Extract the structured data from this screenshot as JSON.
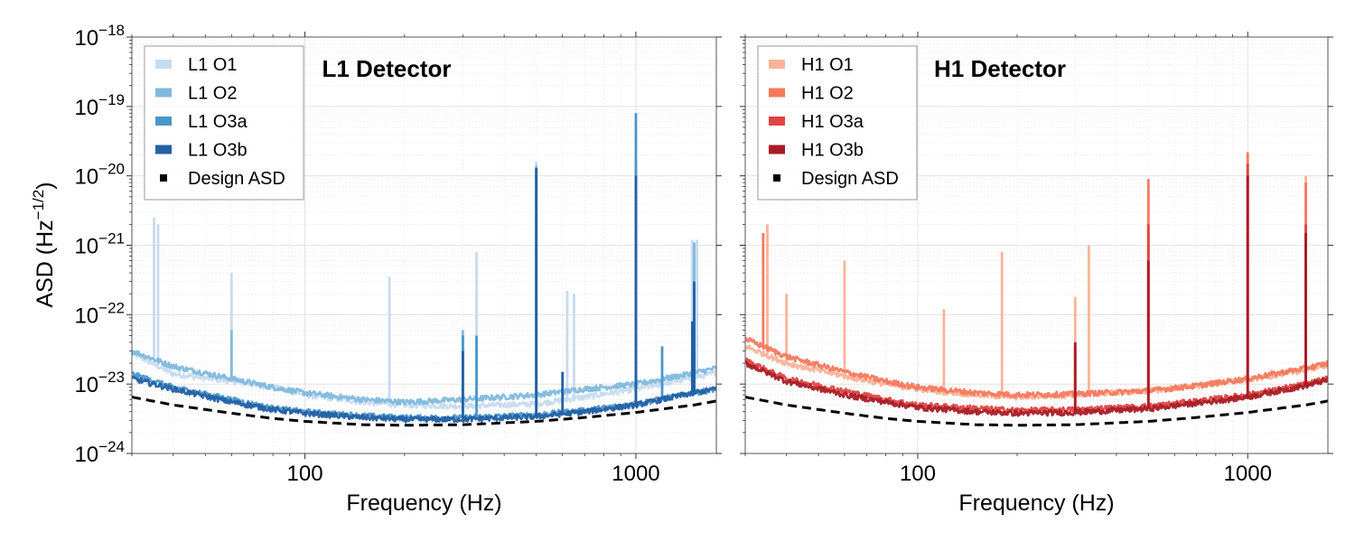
{
  "shared": {
    "ylabel": "ASD (Hz",
    "ylabel_sup": "−1/2",
    "ylabel_close": ")",
    "xlabel": "Frequency (Hz)",
    "xlim": [
      30,
      1750
    ],
    "ylim": [
      1e-24,
      1e-18
    ],
    "x_ticks": [
      {
        "value": 100,
        "label": "100"
      },
      {
        "value": 1000,
        "label": "1000"
      }
    ],
    "y_ticks": [
      {
        "exp": -24,
        "label": "−24"
      },
      {
        "exp": -23,
        "label": "−23"
      },
      {
        "exp": -22,
        "label": "−22"
      },
      {
        "exp": -21,
        "label": "−21"
      },
      {
        "exp": -20,
        "label": "−20"
      },
      {
        "exp": -19,
        "label": "−19"
      },
      {
        "exp": -18,
        "label": "−18"
      }
    ],
    "y_tick_base": "10",
    "grid": true
  },
  "chart_data": [
    {
      "type": "line",
      "title": "L1 Detector",
      "xscale": "log",
      "yscale": "log",
      "legend_position": "top-left",
      "series": [
        {
          "name": "L1 O1",
          "color": "#c6dbef",
          "points": [
            [
              30,
              2.8e-23
            ],
            [
              40,
              1.4e-23
            ],
            [
              60,
              1.1e-23
            ],
            [
              80,
              9e-24
            ],
            [
              100,
              7e-24
            ],
            [
              150,
              5.5e-24
            ],
            [
              200,
              5e-24
            ],
            [
              300,
              4.8e-24
            ],
            [
              500,
              5.2e-24
            ],
            [
              700,
              6.5e-24
            ],
            [
              1000,
              8.5e-24
            ],
            [
              1500,
              1.25e-23
            ],
            [
              1750,
              1.45e-23
            ]
          ],
          "lines": [
            [
              35,
              2.5e-21
            ],
            [
              36,
              2e-21
            ],
            [
              60,
              4e-22
            ],
            [
              180,
              3.5e-22
            ],
            [
              330,
              8e-22
            ],
            [
              500,
              1.6e-20
            ],
            [
              620,
              2.2e-22
            ],
            [
              650,
              2e-22
            ],
            [
              1000,
              1.5e-20
            ],
            [
              1480,
              1.2e-21
            ],
            [
              1530,
              1.2e-21
            ]
          ]
        },
        {
          "name": "L1 O2",
          "color": "#7fb9dd",
          "points": [
            [
              30,
              3e-23
            ],
            [
              40,
              1.8e-23
            ],
            [
              60,
              1.2e-23
            ],
            [
              80,
              9e-24
            ],
            [
              100,
              7.5e-24
            ],
            [
              150,
              6e-24
            ],
            [
              200,
              5.5e-24
            ],
            [
              300,
              6e-24
            ],
            [
              500,
              7e-24
            ],
            [
              700,
              8.5e-24
            ],
            [
              1000,
              1e-23
            ],
            [
              1500,
              1.45e-23
            ],
            [
              1750,
              1.7e-23
            ]
          ],
          "lines": [
            [
              60,
              6e-23
            ],
            [
              300,
              6e-23
            ],
            [
              500,
              1.4e-20
            ],
            [
              1000,
              1.2e-20
            ],
            [
              1500,
              1.1e-21
            ]
          ]
        },
        {
          "name": "L1 O3a",
          "color": "#4a96c9",
          "points": [
            [
              30,
              1.4e-23
            ],
            [
              40,
              9e-24
            ],
            [
              60,
              6e-24
            ],
            [
              80,
              4.5e-24
            ],
            [
              100,
              4e-24
            ],
            [
              150,
              3.5e-24
            ],
            [
              200,
              3.3e-24
            ],
            [
              300,
              3.3e-24
            ],
            [
              500,
              3.6e-24
            ],
            [
              700,
              4.2e-24
            ],
            [
              1000,
              5.2e-24
            ],
            [
              1500,
              7.5e-24
            ],
            [
              1750,
              8.5e-24
            ]
          ],
          "lines": [
            [
              300,
              5e-23
            ],
            [
              330,
              5e-23
            ],
            [
              500,
              1.2e-20
            ],
            [
              1000,
              8e-20
            ],
            [
              1200,
              3.5e-23
            ],
            [
              1500,
              3e-23
            ]
          ]
        },
        {
          "name": "L1 O3b",
          "color": "#2360a5",
          "points": [
            [
              30,
              1.2e-23
            ],
            [
              40,
              8.5e-24
            ],
            [
              60,
              5.5e-24
            ],
            [
              80,
              4.3e-24
            ],
            [
              100,
              3.8e-24
            ],
            [
              150,
              3.3e-24
            ],
            [
              200,
              3.1e-24
            ],
            [
              300,
              3.1e-24
            ],
            [
              500,
              3.4e-24
            ],
            [
              700,
              4e-24
            ],
            [
              1000,
              5e-24
            ],
            [
              1500,
              7.5e-24
            ],
            [
              1750,
              8.5e-24
            ]
          ],
          "lines": [
            [
              300,
              3e-23
            ],
            [
              500,
              1.3e-20
            ],
            [
              600,
              1.5e-23
            ],
            [
              1000,
              1e-20
            ],
            [
              1480,
              8e-23
            ],
            [
              1500,
              3e-22
            ]
          ]
        },
        {
          "name": "Design ASD",
          "color": "#000000",
          "dashed": true,
          "points": [
            [
              30,
              6.5e-24
            ],
            [
              40,
              5e-24
            ],
            [
              60,
              3.8e-24
            ],
            [
              80,
              3.2e-24
            ],
            [
              100,
              2.9e-24
            ],
            [
              150,
              2.6e-24
            ],
            [
              200,
              2.55e-24
            ],
            [
              300,
              2.6e-24
            ],
            [
              500,
              2.9e-24
            ],
            [
              700,
              3.3e-24
            ],
            [
              1000,
              3.9e-24
            ],
            [
              1500,
              5e-24
            ],
            [
              1750,
              5.7e-24
            ]
          ]
        }
      ]
    },
    {
      "type": "line",
      "title": "H1 Detector",
      "xscale": "log",
      "yscale": "log",
      "legend_position": "top-left",
      "series": [
        {
          "name": "H1 O1",
          "color": "#fcb398",
          "points": [
            [
              30,
              3.5e-23
            ],
            [
              40,
              2e-23
            ],
            [
              60,
              1.3e-23
            ],
            [
              80,
              1e-23
            ],
            [
              100,
              8.5e-24
            ],
            [
              150,
              7e-24
            ],
            [
              200,
              6.5e-24
            ],
            [
              300,
              7e-24
            ],
            [
              500,
              8e-24
            ],
            [
              700,
              9.5e-24
            ],
            [
              1000,
              1.15e-23
            ],
            [
              1500,
              1.6e-23
            ],
            [
              1750,
              1.9e-23
            ]
          ],
          "lines": [
            [
              35,
              2e-21
            ],
            [
              40,
              2e-22
            ],
            [
              60,
              6e-22
            ],
            [
              120,
              1.2e-22
            ],
            [
              180,
              8e-22
            ],
            [
              300,
              1.8e-22
            ],
            [
              330,
              1e-21
            ],
            [
              500,
              6e-21
            ],
            [
              1000,
              2e-20
            ],
            [
              1500,
              1e-20
            ]
          ]
        },
        {
          "name": "H1 O2",
          "color": "#f6795e",
          "points": [
            [
              30,
              4.5e-23
            ],
            [
              40,
              2.5e-23
            ],
            [
              60,
              1.5e-23
            ],
            [
              80,
              1.1e-23
            ],
            [
              100,
              9e-24
            ],
            [
              150,
              7.5e-24
            ],
            [
              200,
              7e-24
            ],
            [
              300,
              7.2e-24
            ],
            [
              500,
              8e-24
            ],
            [
              700,
              9.5e-24
            ],
            [
              1000,
              1.2e-23
            ],
            [
              1500,
              1.7e-23
            ],
            [
              1750,
              2e-23
            ]
          ],
          "lines": [
            [
              34,
              1.5e-21
            ],
            [
              500,
              9e-21
            ],
            [
              1000,
              2.2e-20
            ],
            [
              1500,
              8e-21
            ]
          ]
        },
        {
          "name": "H1 O3a",
          "color": "#df4442",
          "points": [
            [
              30,
              2.2e-23
            ],
            [
              40,
              1.2e-23
            ],
            [
              60,
              8e-24
            ],
            [
              80,
              6e-24
            ],
            [
              100,
              5e-24
            ],
            [
              150,
              4.5e-24
            ],
            [
              200,
              4.2e-24
            ],
            [
              300,
              4.3e-24
            ],
            [
              500,
              4.8e-24
            ],
            [
              700,
              5.7e-24
            ],
            [
              1000,
              7e-24
            ],
            [
              1500,
              1e-23
            ],
            [
              1750,
              1.2e-23
            ]
          ],
          "lines": [
            [
              300,
              3.5e-23
            ],
            [
              500,
              2e-21
            ],
            [
              1000,
              1.5e-20
            ],
            [
              1500,
              2e-21
            ]
          ]
        },
        {
          "name": "H1 O3b",
          "color": "#a81c26",
          "points": [
            [
              30,
              2e-23
            ],
            [
              40,
              1.1e-23
            ],
            [
              60,
              7e-24
            ],
            [
              80,
              5.5e-24
            ],
            [
              100,
              4.6e-24
            ],
            [
              150,
              4e-24
            ],
            [
              200,
              3.8e-24
            ],
            [
              300,
              3.9e-24
            ],
            [
              500,
              4.4e-24
            ],
            [
              700,
              5.3e-24
            ],
            [
              1000,
              6.5e-24
            ],
            [
              1500,
              9.5e-24
            ],
            [
              1750,
              1.15e-23
            ]
          ],
          "lines": [
            [
              300,
              4e-23
            ],
            [
              500,
              6e-22
            ],
            [
              1000,
              1e-20
            ],
            [
              1500,
              1.5e-21
            ]
          ]
        },
        {
          "name": "Design ASD",
          "color": "#000000",
          "dashed": true,
          "points": [
            [
              30,
              6.5e-24
            ],
            [
              40,
              5e-24
            ],
            [
              60,
              3.8e-24
            ],
            [
              80,
              3.2e-24
            ],
            [
              100,
              2.9e-24
            ],
            [
              150,
              2.6e-24
            ],
            [
              200,
              2.55e-24
            ],
            [
              300,
              2.6e-24
            ],
            [
              500,
              2.9e-24
            ],
            [
              700,
              3.3e-24
            ],
            [
              1000,
              3.9e-24
            ],
            [
              1500,
              5e-24
            ],
            [
              1750,
              5.7e-24
            ]
          ]
        }
      ]
    }
  ]
}
